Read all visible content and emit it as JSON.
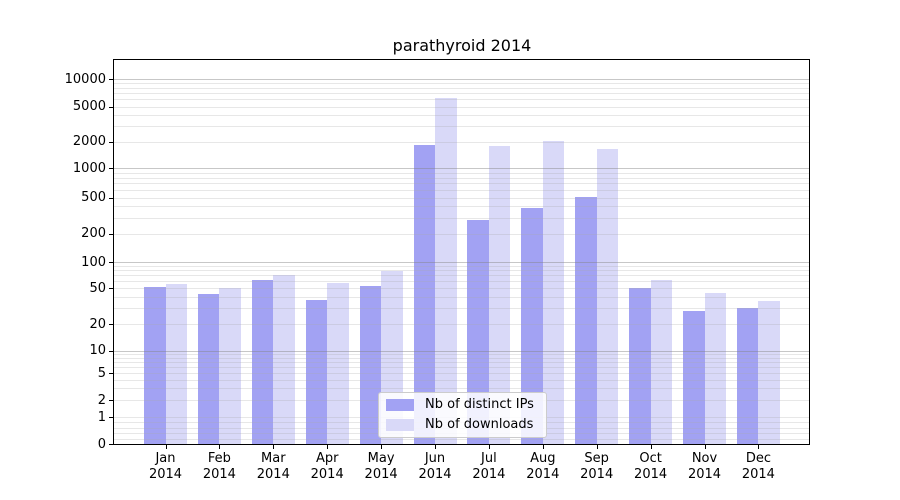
{
  "chart_data": {
    "type": "bar",
    "title": "parathyroid 2014",
    "categories": [
      "Jan",
      "Feb",
      "Mar",
      "Apr",
      "May",
      "Jun",
      "Jul",
      "Aug",
      "Sep",
      "Oct",
      "Nov",
      "Dec"
    ],
    "category_year": "2014",
    "series": [
      {
        "name": "Nb of distinct IPs",
        "color": "#a2a2f3",
        "values": [
          51,
          43,
          62,
          37,
          53,
          1850,
          280,
          380,
          510,
          50,
          28,
          30
        ]
      },
      {
        "name": "Nb of downloads",
        "color": "#d9d9f8",
        "values": [
          55,
          50,
          71,
          57,
          78,
          6200,
          1780,
          2050,
          1640,
          62,
          44,
          36
        ]
      }
    ],
    "xlabel": "",
    "ylabel": "",
    "yaxis": {
      "scale": "symlog",
      "tick_labels": [
        "0",
        "1",
        "2",
        "5",
        "10",
        "20",
        "50",
        "100",
        "200",
        "500",
        "1000",
        "2000",
        "5000",
        "10000"
      ],
      "tick_values": [
        0,
        1,
        2,
        5,
        10,
        20,
        50,
        100,
        200,
        500,
        1000,
        2000,
        5000,
        10000
      ],
      "ylim": [
        0,
        13000
      ]
    },
    "grid": {
      "horizontal": true,
      "vertical": false,
      "which": "both",
      "drawn_over_bars": true
    },
    "legend_position": "lower-center",
    "colors": {
      "background": "#ffffff",
      "spine": "#000000",
      "grid_major": "#c8c8c8",
      "grid_minor": "#ebebeb",
      "legend_border": "#cccccc"
    }
  }
}
